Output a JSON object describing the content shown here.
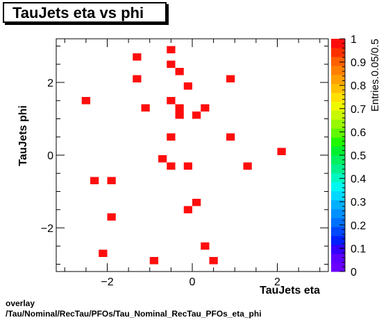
{
  "chart_data": {
    "type": "heatmap",
    "title": "TauJets eta vs phi",
    "xlabel": "TauJets eta",
    "ylabel": "TauJets phi",
    "zlabel": "Entries.0.05/0.5",
    "xlim": [
      -3.2,
      3.2
    ],
    "ylim": [
      -3.2,
      3.2
    ],
    "zlim": [
      0,
      1
    ],
    "x_ticks": [
      -2,
      0,
      2
    ],
    "x_tick_labels": [
      "−2",
      "0",
      "2"
    ],
    "y_ticks": [
      -2,
      0,
      2
    ],
    "y_tick_labels": [
      "−2",
      "0",
      "2"
    ],
    "z_ticks": [
      0,
      0.1,
      0.2,
      0.3,
      0.4,
      0.5,
      0.6,
      0.7,
      0.8,
      0.9,
      1
    ],
    "z_tick_labels": [
      "0",
      "0.1",
      "0.2",
      "0.3",
      "0.4",
      "0.5",
      "0.6",
      "0.7",
      "0.8",
      "0.9",
      "1"
    ],
    "bin_width": [
      0.2,
      0.2
    ],
    "points": [
      {
        "x": -0.5,
        "y": 2.9
      },
      {
        "x": -1.3,
        "y": 2.7
      },
      {
        "x": -0.5,
        "y": 2.5
      },
      {
        "x": -0.3,
        "y": 2.3
      },
      {
        "x": -1.3,
        "y": 2.1
      },
      {
        "x": 0.9,
        "y": 2.1
      },
      {
        "x": -0.1,
        "y": 1.9
      },
      {
        "x": -2.5,
        "y": 1.5
      },
      {
        "x": -0.5,
        "y": 1.5
      },
      {
        "x": -1.1,
        "y": 1.3
      },
      {
        "x": -0.3,
        "y": 1.3
      },
      {
        "x": 0.3,
        "y": 1.3
      },
      {
        "x": -0.3,
        "y": 1.1
      },
      {
        "x": 0.1,
        "y": 1.1
      },
      {
        "x": -0.5,
        "y": 0.5
      },
      {
        "x": 0.9,
        "y": 0.5
      },
      {
        "x": 2.1,
        "y": 0.1
      },
      {
        "x": -0.7,
        "y": -0.1
      },
      {
        "x": -0.5,
        "y": -0.3
      },
      {
        "x": -0.1,
        "y": -0.3
      },
      {
        "x": 1.3,
        "y": -0.3
      },
      {
        "x": -2.3,
        "y": -0.7
      },
      {
        "x": -1.9,
        "y": -0.7
      },
      {
        "x": 0.1,
        "y": -1.3
      },
      {
        "x": -0.1,
        "y": -1.5
      },
      {
        "x": -1.9,
        "y": -1.7
      },
      {
        "x": 0.3,
        "y": -2.5
      },
      {
        "x": -2.1,
        "y": -2.7
      },
      {
        "x": -0.9,
        "y": -2.9
      },
      {
        "x": 0.5,
        "y": -2.9
      }
    ],
    "value": 1,
    "colors": {
      "cell": "#ff0d0d",
      "palette": [
        "#6a00ff",
        "#5b00ff",
        "#3400ff",
        "#0020ff",
        "#0048ff",
        "#0070ff",
        "#0090ff",
        "#00b0ff",
        "#00d8ff",
        "#00f8f0",
        "#00f8c0",
        "#00f090",
        "#00f060",
        "#00f030",
        "#20f800",
        "#60f800",
        "#98f800",
        "#c8f800",
        "#f0f800",
        "#ffe000",
        "#ffc000",
        "#ffa000",
        "#ff8000",
        "#ff6000",
        "#ff3000",
        "#ff0d0d"
      ]
    }
  },
  "footer": {
    "line1": "overlay",
    "line2": "/Tau/Nominal/RecTau/PFOs/Tau_Nominal_RecTau_PFOs_eta_phi"
  }
}
